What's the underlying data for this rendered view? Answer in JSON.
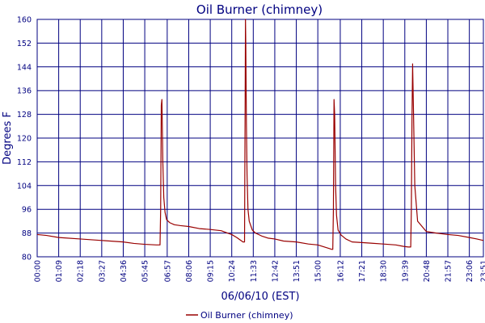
{
  "chart_data": {
    "type": "line",
    "title": "Oil Burner (chimney)",
    "xlabel": "06/06/10 (EST)",
    "ylabel": "Degrees F",
    "ylim": [
      80,
      160
    ],
    "yticks": [
      80,
      88,
      96,
      104,
      112,
      120,
      128,
      136,
      144,
      152,
      160
    ],
    "xlim": [
      0,
      1431
    ],
    "xtick_labels": [
      "00:00",
      "01:09",
      "02:18",
      "03:27",
      "04:36",
      "05:45",
      "06:57",
      "08:06",
      "09:15",
      "10:24",
      "11:33",
      "12:42",
      "13:51",
      "15:00",
      "16:12",
      "17:21",
      "18:30",
      "19:39",
      "20:48",
      "21:57",
      "23:06",
      "23:51"
    ],
    "xtick_minutes": [
      0,
      69,
      138,
      207,
      276,
      345,
      417,
      486,
      555,
      624,
      693,
      762,
      831,
      900,
      972,
      1041,
      1110,
      1179,
      1248,
      1317,
      1386,
      1431
    ],
    "grid": true,
    "legend_position": "bottom-center",
    "colors": {
      "series": "#990000",
      "grid": "#000080",
      "text": "#000080"
    },
    "series": [
      {
        "name": "Oil Burner (chimney)",
        "x": [
          0,
          30,
          69,
          138,
          207,
          276,
          310,
          345,
          382,
          394,
          396,
          398,
          400,
          403,
          406,
          410,
          415,
          425,
          440,
          460,
          486,
          520,
          555,
          590,
          610,
          624,
          640,
          660,
          665,
          666,
          667,
          668,
          669,
          671,
          673,
          676,
          680,
          690,
          700,
          720,
          740,
          762,
          790,
          831,
          870,
          900,
          930,
          945,
          948,
          950,
          952,
          954,
          957,
          960,
          965,
          975,
          990,
          1010,
          1041,
          1070,
          1110,
          1150,
          1175,
          1190,
          1198,
          1200,
          1202,
          1204,
          1207,
          1211,
          1220,
          1248,
          1280,
          1317,
          1350,
          1386,
          1410,
          1431
        ],
        "y": [
          87.5,
          87.2,
          86.5,
          86.0,
          85.5,
          85.0,
          84.5,
          84.2,
          84.0,
          84.0,
          96,
          131,
          133,
          112,
          100,
          95,
          92.5,
          91.5,
          90.8,
          90.5,
          90.2,
          89.5,
          89.2,
          88.8,
          88.0,
          87.5,
          86.5,
          85.0,
          85.0,
          110,
          133,
          160,
          152,
          125,
          108,
          96,
          92,
          89,
          88,
          87,
          86.3,
          86.0,
          85.3,
          85.0,
          84.3,
          84.0,
          83.0,
          82.5,
          82.5,
          96,
          133,
          128,
          104,
          94,
          89,
          87.3,
          86.0,
          85.0,
          84.8,
          84.6,
          84.3,
          84.0,
          83.5,
          83.3,
          83.3,
          96,
          126,
          145,
          128,
          104,
          92,
          88.5,
          88.0,
          87.5,
          87.2,
          86.5,
          86.0,
          85.5
        ]
      }
    ]
  }
}
